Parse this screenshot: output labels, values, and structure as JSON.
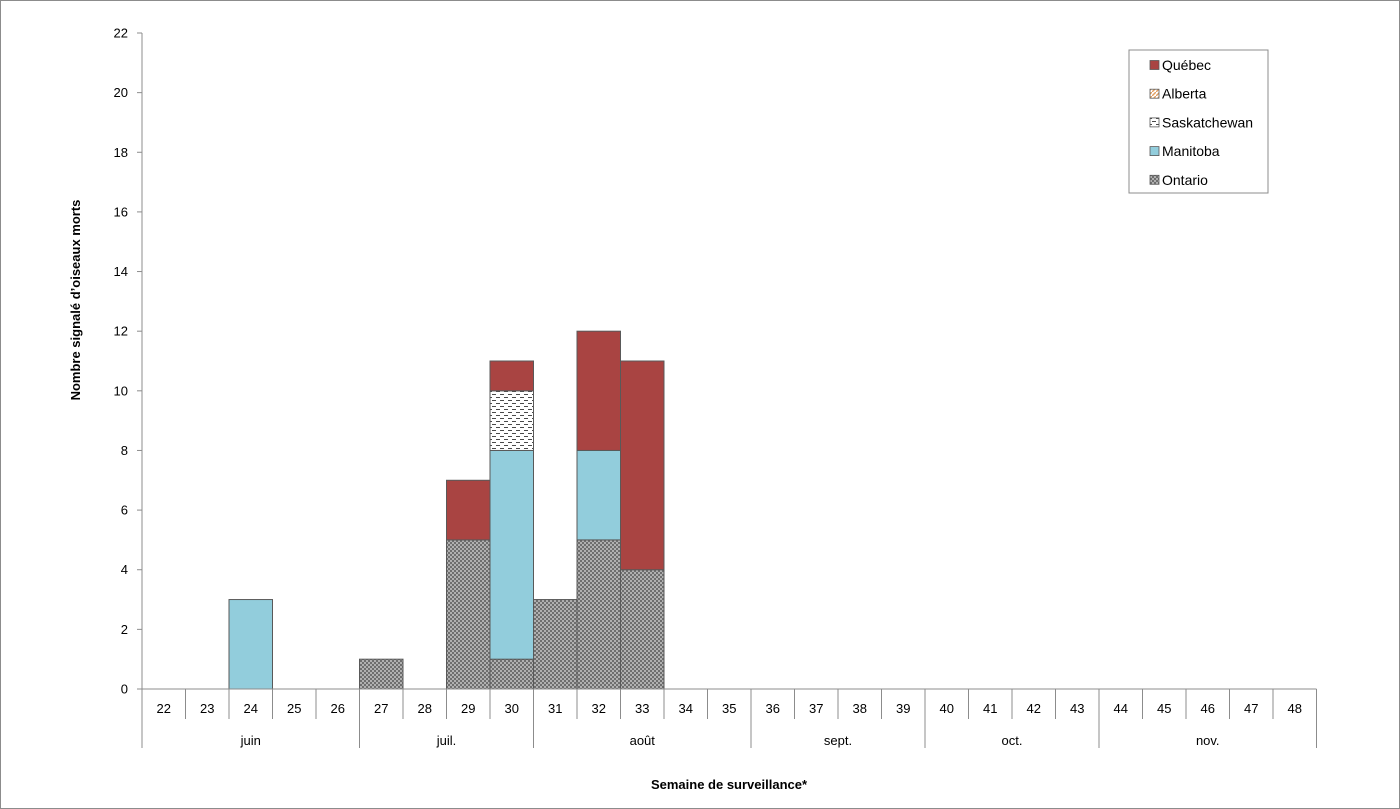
{
  "chart_data": {
    "type": "bar",
    "stacked": true,
    "ylabel": "Nombre signalé d’oiseaux morts",
    "xlabel": "Semaine de surveillance*",
    "ylim": [
      0,
      22
    ],
    "yticks": [
      0,
      2,
      4,
      6,
      8,
      10,
      12,
      14,
      16,
      18,
      20,
      22
    ],
    "categories": [
      "22",
      "23",
      "24",
      "25",
      "26",
      "27",
      "28",
      "29",
      "30",
      "31",
      "32",
      "33",
      "34",
      "35",
      "36",
      "37",
      "38",
      "39",
      "40",
      "41",
      "42",
      "43",
      "44",
      "45",
      "46",
      "47",
      "48"
    ],
    "months": [
      {
        "label": "juin",
        "start": "22",
        "end": "26"
      },
      {
        "label": "juil.",
        "start": "27",
        "end": "30"
      },
      {
        "label": "août",
        "start": "31",
        "end": "35"
      },
      {
        "label": "sept.",
        "start": "36",
        "end": "39"
      },
      {
        "label": "oct.",
        "start": "40",
        "end": "43"
      },
      {
        "label": "nov.",
        "start": "44",
        "end": "48"
      }
    ],
    "series": [
      {
        "name": "Ontario",
        "color": "#8c8c8c",
        "pattern": "dots",
        "values": [
          0,
          0,
          0,
          0,
          0,
          1,
          0,
          5,
          1,
          3,
          5,
          4,
          0,
          0,
          0,
          0,
          0,
          0,
          0,
          0,
          0,
          0,
          0,
          0,
          0,
          0,
          0
        ]
      },
      {
        "name": "Manitoba",
        "color": "#92cddc",
        "pattern": "solid",
        "values": [
          0,
          0,
          3,
          0,
          0,
          0,
          0,
          0,
          7,
          0,
          3,
          0,
          0,
          0,
          0,
          0,
          0,
          0,
          0,
          0,
          0,
          0,
          0,
          0,
          0,
          0,
          0
        ]
      },
      {
        "name": "Saskatchewan",
        "color": "#ffffff",
        "pattern": "dashes",
        "values": [
          0,
          0,
          0,
          0,
          0,
          0,
          0,
          0,
          2,
          0,
          0,
          0,
          0,
          0,
          0,
          0,
          0,
          0,
          0,
          0,
          0,
          0,
          0,
          0,
          0,
          0,
          0
        ]
      },
      {
        "name": "Alberta",
        "color": "#e4a062",
        "pattern": "diagonal",
        "values": [
          0,
          0,
          0,
          0,
          0,
          0,
          0,
          0,
          0,
          0,
          0,
          0,
          0,
          0,
          0,
          0,
          0,
          0,
          0,
          0,
          0,
          0,
          0,
          0,
          0,
          0,
          0
        ]
      },
      {
        "name": "Québec",
        "color": "#a94442",
        "pattern": "solid",
        "values": [
          0,
          0,
          0,
          0,
          0,
          0,
          0,
          2,
          1,
          0,
          4,
          7,
          0,
          0,
          0,
          0,
          0,
          0,
          0,
          0,
          0,
          0,
          0,
          0,
          0,
          0,
          0
        ]
      }
    ],
    "legend": {
      "placement": "top-right",
      "order": [
        "Québec",
        "Alberta",
        "Saskatchewan",
        "Manitoba",
        "Ontario"
      ]
    },
    "grid": false
  }
}
